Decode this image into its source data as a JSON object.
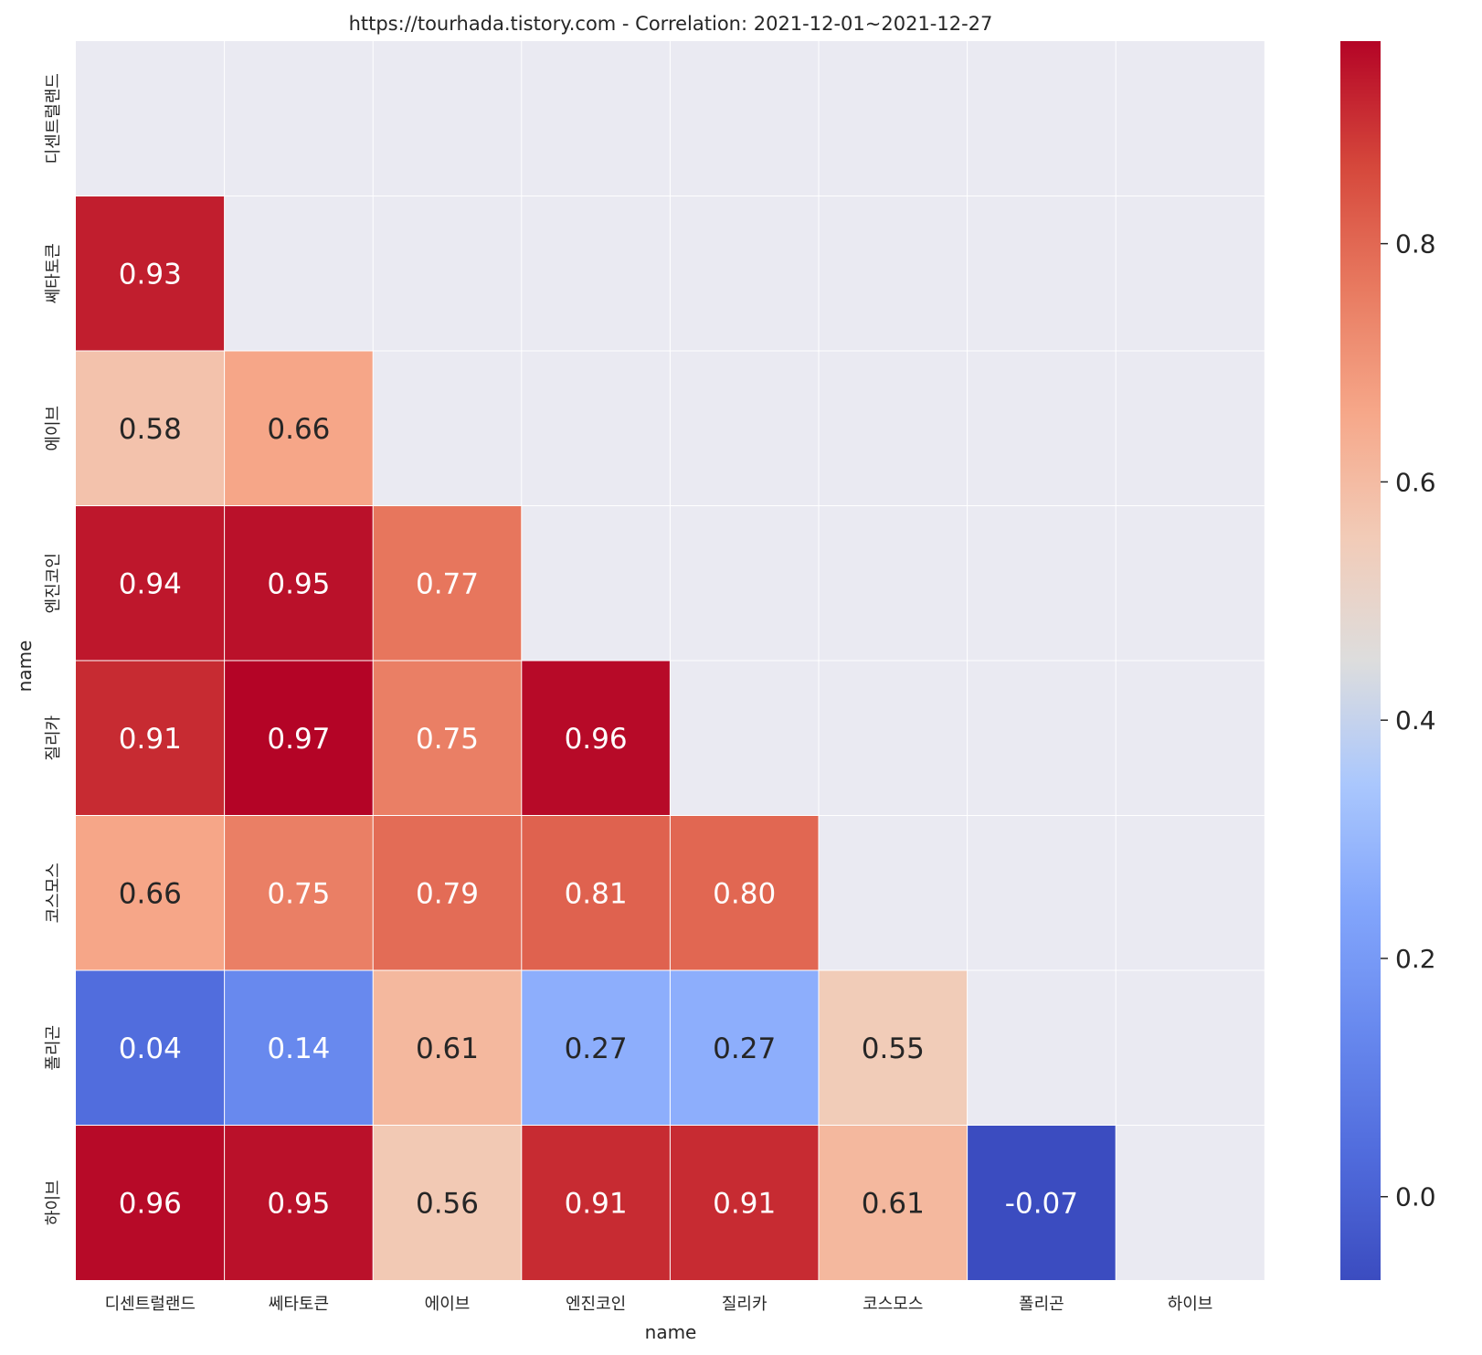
{
  "chart_data": {
    "type": "heatmap",
    "title": "https://tourhada.tistory.com - Correlation: 2021-12-01~2021-12-27",
    "xlabel": "name",
    "ylabel": "name",
    "labels": [
      "디센트럴랜드",
      "쎄타토큰",
      "에이브",
      "엔진코인",
      "질리카",
      "코스모스",
      "폴리곤",
      "하이브"
    ],
    "matrix": [
      [
        null,
        null,
        null,
        null,
        null,
        null,
        null,
        null
      ],
      [
        0.93,
        null,
        null,
        null,
        null,
        null,
        null,
        null
      ],
      [
        0.58,
        0.66,
        null,
        null,
        null,
        null,
        null,
        null
      ],
      [
        0.94,
        0.95,
        0.77,
        null,
        null,
        null,
        null,
        null
      ],
      [
        0.91,
        0.97,
        0.75,
        0.96,
        null,
        null,
        null,
        null
      ],
      [
        0.66,
        0.75,
        0.79,
        0.81,
        0.8,
        null,
        null,
        null
      ],
      [
        0.04,
        0.14,
        0.61,
        0.27,
        0.27,
        0.55,
        null,
        null
      ],
      [
        0.96,
        0.95,
        0.56,
        0.91,
        0.91,
        0.61,
        -0.07,
        null
      ]
    ],
    "cell_labels": [
      [
        null,
        null,
        null,
        null,
        null,
        null,
        null,
        null
      ],
      [
        "0.93",
        null,
        null,
        null,
        null,
        null,
        null,
        null
      ],
      [
        "0.58",
        "0.66",
        null,
        null,
        null,
        null,
        null,
        null
      ],
      [
        "0.94",
        "0.95",
        "0.77",
        null,
        null,
        null,
        null,
        null
      ],
      [
        "0.91",
        "0.97",
        "0.75",
        "0.96",
        null,
        null,
        null,
        null
      ],
      [
        "0.66",
        "0.75",
        "0.79",
        "0.81",
        "0.80",
        null,
        null,
        null
      ],
      [
        "0.04",
        "0.14",
        "0.61",
        "0.27",
        "0.27",
        "0.55",
        null,
        null
      ],
      [
        "0.96",
        "0.95",
        "0.56",
        "0.91",
        "0.91",
        "0.61",
        "-0.07",
        null
      ]
    ],
    "colormap": "coolwarm",
    "vmin": -0.07,
    "vmax": 0.97,
    "colorbar_ticks": [
      0.0,
      0.2,
      0.4,
      0.6,
      0.8
    ],
    "colorbar_tick_labels": [
      "0.0",
      "0.2",
      "0.4",
      "0.6",
      "0.8"
    ],
    "masked_color": "#eaeaf2",
    "grid_color": "#ffffff"
  }
}
